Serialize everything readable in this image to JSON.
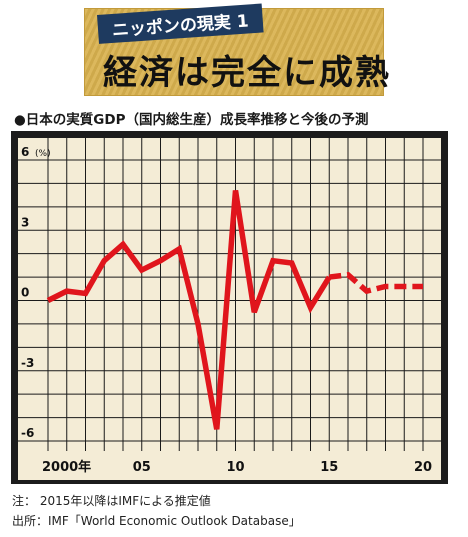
{
  "banner": {
    "tag": "ニッポンの現実 1",
    "title": "経済は完全に成熟"
  },
  "chart_title": "●日本の実質GDP（国内総生産）成長率推移と今後の予測",
  "notes": {
    "note1": "注： 2015年以降はIMFによる推定値",
    "note2": "出所：IMF「World Economic Outlook Database」"
  },
  "colors": {
    "line": "#e0151c",
    "plot_bg": "#f4ecd6",
    "grid": "#1a1a1a",
    "frame": "#1c1c1c"
  },
  "chart_data": {
    "type": "line",
    "title": "日本の実質GDP（国内総生産）成長率推移と今後の予測",
    "ylabel": "(%)",
    "ylim": [
      -6,
      6
    ],
    "xlim": [
      2000,
      2020
    ],
    "y_ticks": [
      {
        "value": 6,
        "label": "6"
      },
      {
        "value": 3,
        "label": "3"
      },
      {
        "value": 0,
        "label": "0"
      },
      {
        "value": -3,
        "label": "-3"
      },
      {
        "value": -6,
        "label": "-6"
      }
    ],
    "x_ticks": [
      {
        "value": 2000,
        "label": "2000年"
      },
      {
        "value": 2005,
        "label": "05"
      },
      {
        "value": 2010,
        "label": "10"
      },
      {
        "value": 2015,
        "label": "15"
      },
      {
        "value": 2020,
        "label": "20"
      }
    ],
    "grid": true,
    "series": [
      {
        "style": "solid",
        "x": [
          2000,
          2001,
          2002,
          2003,
          2004,
          2005,
          2006,
          2007,
          2008,
          2009,
          2010,
          2011,
          2012,
          2013,
          2014,
          2015
        ],
        "values": [
          0.0,
          0.4,
          0.3,
          1.7,
          2.4,
          1.3,
          1.7,
          2.2,
          -1.0,
          -5.5,
          4.7,
          -0.5,
          1.7,
          1.6,
          -0.3,
          1.0
        ]
      },
      {
        "style": "dashed",
        "x": [
          2015,
          2016,
          2017,
          2018,
          2019,
          2020
        ],
        "values": [
          1.0,
          1.1,
          0.4,
          0.6,
          0.6,
          0.6
        ]
      }
    ]
  }
}
